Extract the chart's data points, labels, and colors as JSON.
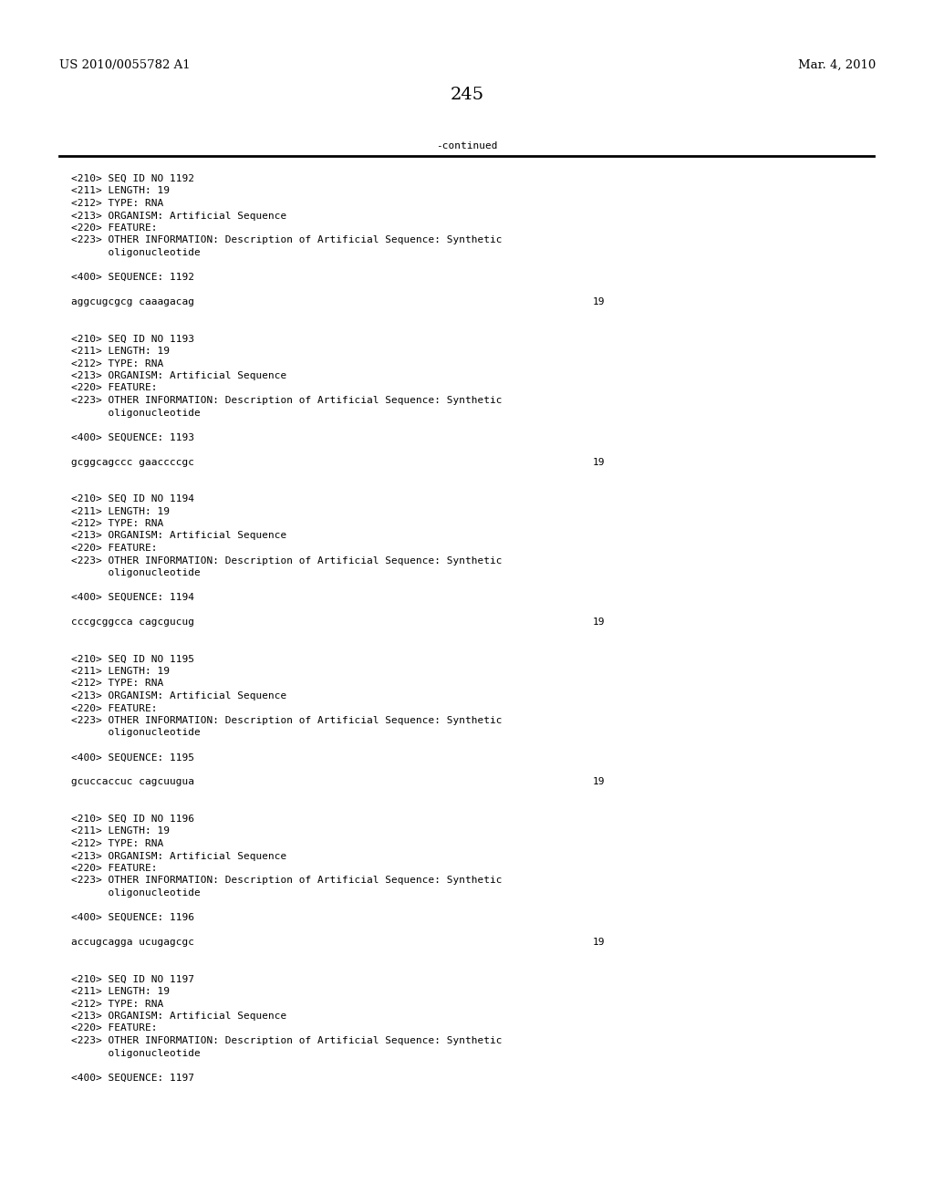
{
  "page_number": "245",
  "left_header": "US 2010/0055782 A1",
  "right_header": "Mar. 4, 2010",
  "continued_label": "-continued",
  "background_color": "#ffffff",
  "text_color": "#000000",
  "font_size_header": 9.5,
  "font_size_body": 8.0,
  "font_size_page_num": 14,
  "content_lines": [
    "<210> SEQ ID NO 1192",
    "<211> LENGTH: 19",
    "<212> TYPE: RNA",
    "<213> ORGANISM: Artificial Sequence",
    "<220> FEATURE:",
    "<223> OTHER INFORMATION: Description of Artificial Sequence: Synthetic",
    "      oligonucleotide",
    "",
    "<400> SEQUENCE: 1192",
    "",
    "aggcugcgcg caaagacag",
    "",
    "",
    "<210> SEQ ID NO 1193",
    "<211> LENGTH: 19",
    "<212> TYPE: RNA",
    "<213> ORGANISM: Artificial Sequence",
    "<220> FEATURE:",
    "<223> OTHER INFORMATION: Description of Artificial Sequence: Synthetic",
    "      oligonucleotide",
    "",
    "<400> SEQUENCE: 1193",
    "",
    "gcggcagccc gaaccccgc",
    "",
    "",
    "<210> SEQ ID NO 1194",
    "<211> LENGTH: 19",
    "<212> TYPE: RNA",
    "<213> ORGANISM: Artificial Sequence",
    "<220> FEATURE:",
    "<223> OTHER INFORMATION: Description of Artificial Sequence: Synthetic",
    "      oligonucleotide",
    "",
    "<400> SEQUENCE: 1194",
    "",
    "cccgcggcca cagcgucug",
    "",
    "",
    "<210> SEQ ID NO 1195",
    "<211> LENGTH: 19",
    "<212> TYPE: RNA",
    "<213> ORGANISM: Artificial Sequence",
    "<220> FEATURE:",
    "<223> OTHER INFORMATION: Description of Artificial Sequence: Synthetic",
    "      oligonucleotide",
    "",
    "<400> SEQUENCE: 1195",
    "",
    "gcuccaccuc cagcuugua",
    "",
    "",
    "<210> SEQ ID NO 1196",
    "<211> LENGTH: 19",
    "<212> TYPE: RNA",
    "<213> ORGANISM: Artificial Sequence",
    "<220> FEATURE:",
    "<223> OTHER INFORMATION: Description of Artificial Sequence: Synthetic",
    "      oligonucleotide",
    "",
    "<400> SEQUENCE: 1196",
    "",
    "accugcagga ucugagcgc",
    "",
    "",
    "<210> SEQ ID NO 1197",
    "<211> LENGTH: 19",
    "<212> TYPE: RNA",
    "<213> ORGANISM: Artificial Sequence",
    "<220> FEATURE:",
    "<223> OTHER INFORMATION: Description of Artificial Sequence: Synthetic",
    "      oligonucleotide",
    "",
    "<400> SEQUENCE: 1197"
  ],
  "sequence_line_indices": [
    10,
    23,
    36,
    49,
    62
  ],
  "sequence_numbers": [
    "19",
    "19",
    "19",
    "19",
    "19"
  ]
}
